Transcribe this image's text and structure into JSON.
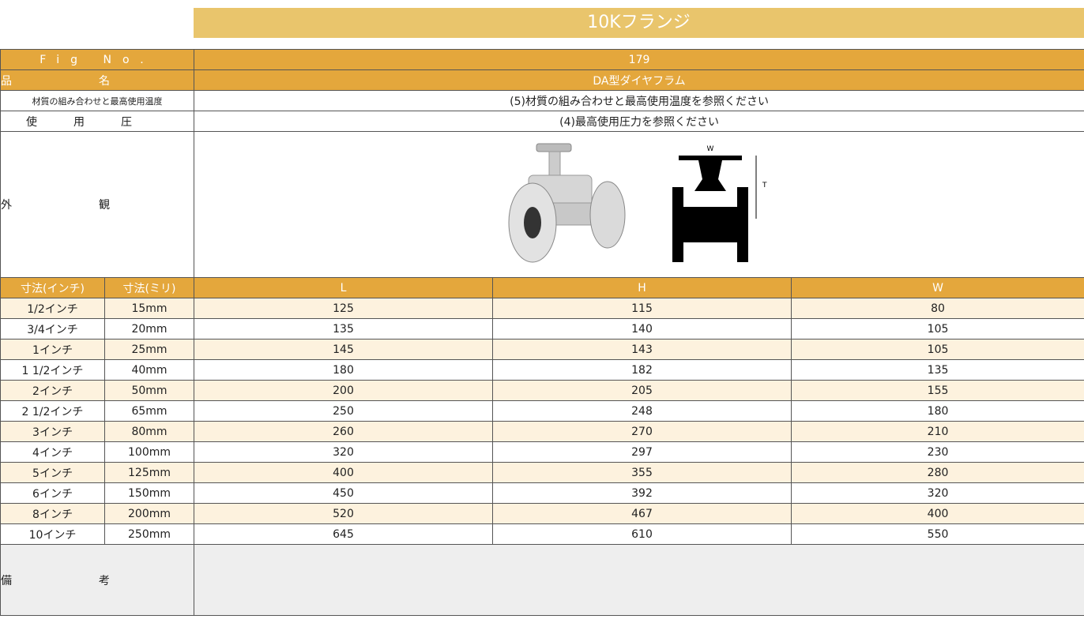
{
  "header": {
    "title": "10Kフランジ"
  },
  "specs": [
    {
      "label": "Fig No.",
      "value": "179"
    },
    {
      "label": "品名",
      "value": "DA型ダイヤフラム"
    },
    {
      "label": "材質の組み合わせと最高使用温度",
      "value": "(5)材質の組み合わせと最高使用温度を参照ください"
    },
    {
      "label": "使用圧",
      "value": "(4)最高使用圧力を参照ください"
    }
  ],
  "appearance": {
    "label": "外観",
    "figure_labels": [
      "W",
      "T"
    ]
  },
  "table": {
    "columns": [
      "寸法(インチ)",
      "寸法(ミリ)",
      "L",
      "H",
      "W"
    ],
    "rows": [
      [
        "1/2インチ",
        "15mm",
        "125",
        "115",
        "80"
      ],
      [
        "3/4インチ",
        "20mm",
        "135",
        "140",
        "105"
      ],
      [
        "1インチ",
        "25mm",
        "145",
        "143",
        "105"
      ],
      [
        "1 1/2インチ",
        "40mm",
        "180",
        "182",
        "135"
      ],
      [
        "2インチ",
        "50mm",
        "200",
        "205",
        "155"
      ],
      [
        "2 1/2インチ",
        "65mm",
        "250",
        "248",
        "180"
      ],
      [
        "3インチ",
        "80mm",
        "260",
        "270",
        "210"
      ],
      [
        "4インチ",
        "100mm",
        "320",
        "297",
        "230"
      ],
      [
        "5インチ",
        "125mm",
        "400",
        "355",
        "280"
      ],
      [
        "6インチ",
        "150mm",
        "450",
        "392",
        "320"
      ],
      [
        "8インチ",
        "200mm",
        "520",
        "467",
        "400"
      ],
      [
        "10インチ",
        "250mm",
        "645",
        "610",
        "550"
      ]
    ]
  },
  "remarks": {
    "label": "備考"
  }
}
